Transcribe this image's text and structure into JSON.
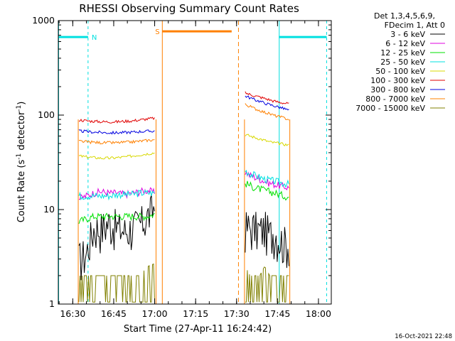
{
  "chart_data": {
    "type": "line",
    "title": "RHESSI Observing Summary Count Rates",
    "xlabel": "Start Time (27-Apr-11 16:24:42)",
    "ylabel_main": "Count Rate (s",
    "ylabel_sup1": "-1",
    "ylabel_mid": " detector",
    "ylabel_sup2": "-1",
    "ylabel_end": ")",
    "x_units": "minutes after 16:24:42",
    "xlim": [
      0,
      100
    ],
    "ylim": [
      1,
      1000
    ],
    "yscale": "log",
    "x_ticks": [
      {
        "value": 5.3,
        "label": "16:30"
      },
      {
        "value": 20.3,
        "label": "16:45"
      },
      {
        "value": 35.3,
        "label": "17:00"
      },
      {
        "value": 50.3,
        "label": "17:15"
      },
      {
        "value": 65.3,
        "label": "17:30"
      },
      {
        "value": 80.3,
        "label": "17:45"
      },
      {
        "value": 95.3,
        "label": "18:00"
      }
    ],
    "y_ticks": [
      {
        "value": 1,
        "label": "1"
      },
      {
        "value": 10,
        "label": "10"
      },
      {
        "value": 100,
        "label": "100"
      },
      {
        "value": 1000,
        "label": "1000"
      }
    ],
    "legend_header": [
      "Det 1,3,4,5,6,9,",
      "FDecim 1, Att 0"
    ],
    "series": [
      {
        "name": "3 - 6 keV",
        "color": "#000000",
        "seg1": [
          3,
          3.5,
          6.5,
          6.5,
          7.5,
          6.5,
          6,
          6.5,
          7,
          8.5,
          11
        ],
        "seg2": [
          6.5,
          6.5,
          6.5,
          6,
          6.5,
          5.5,
          6,
          5,
          4.5,
          4.5
        ]
      },
      {
        "name": "6 - 12 keV",
        "color": "#e000e0",
        "seg1": [
          13,
          14,
          15,
          15.5,
          15,
          15,
          14.5,
          15,
          15.5,
          16,
          15
        ],
        "seg2": [
          25,
          23,
          22,
          21,
          20,
          19,
          18.5,
          18,
          17.5,
          17
        ]
      },
      {
        "name": "12 - 25 keV",
        "color": "#00e000",
        "seg1": [
          7.5,
          8,
          8.5,
          8.5,
          8.5,
          8.5,
          8.5,
          8.5,
          8.5,
          8.5,
          9
        ],
        "seg2": [
          19,
          18,
          17,
          16.5,
          16,
          15.5,
          15,
          14.5,
          14,
          13.5
        ]
      },
      {
        "name": "25 - 50 keV",
        "color": "#00e0e0",
        "seg1": [
          14,
          14,
          14,
          14,
          14,
          14.5,
          14.5,
          14.5,
          15,
          15,
          15
        ],
        "seg2": [
          26,
          24,
          23,
          22,
          21,
          20.5,
          20,
          19.5,
          19,
          18.5
        ]
      },
      {
        "name": "50 - 100 keV",
        "color": "#d8d800",
        "seg1": [
          37,
          36,
          35.5,
          35,
          35,
          35.5,
          36,
          37,
          38,
          39,
          40
        ],
        "seg2": [
          62,
          60,
          58,
          56,
          54,
          52,
          51,
          50,
          49,
          48
        ]
      },
      {
        "name": "100 - 300 keV",
        "color": "#e00000",
        "seg1": [
          89,
          87,
          86,
          85,
          85,
          85,
          86,
          87,
          89,
          91,
          93
        ],
        "seg2": [
          172,
          165,
          160,
          155,
          150,
          145,
          140,
          137,
          134,
          131
        ]
      },
      {
        "name": "300 - 800 keV",
        "color": "#0000e0",
        "seg1": [
          68,
          67,
          66,
          65.5,
          65,
          65,
          65.5,
          66,
          67,
          67.5,
          68
        ],
        "seg2": [
          160,
          152,
          145,
          140,
          134,
          129,
          125,
          121,
          117,
          112
        ]
      },
      {
        "name": "800 - 7000 keV",
        "color": "#ff8000",
        "seg1": [
          53,
          52,
          51.5,
          51,
          51,
          51,
          51.5,
          52,
          53,
          54,
          55
        ],
        "seg2": [
          130,
          123,
          117,
          112,
          107,
          103,
          99,
          96,
          93,
          90
        ]
      },
      {
        "name": "7000 - 15000 keV",
        "color": "#808000",
        "seg1": [
          2.0,
          2.0,
          2.0,
          2.0,
          2.0,
          2.0,
          2.0,
          2.0,
          2.0,
          2.5,
          2.7
        ],
        "seg2": [
          2.5,
          2.0,
          2.0,
          2.0,
          2.5,
          2.0,
          2.0,
          2.0,
          2.0,
          2.0
        ]
      }
    ],
    "segments": [
      {
        "start": 7.3,
        "end": 35.8
      },
      {
        "start": 68.2,
        "end": 84.8
      }
    ],
    "night_label": "N",
    "saa_label": "S",
    "night_intervals": [
      [
        0,
        10.9
      ],
      [
        80.8,
        98.3
      ]
    ],
    "saa_interval": [
      38.1,
      63.5
    ],
    "night_level": 670,
    "saa_level": 770,
    "saa_dashed_end": 66.0,
    "timestamp": "16-Oct-2021 22:48"
  }
}
